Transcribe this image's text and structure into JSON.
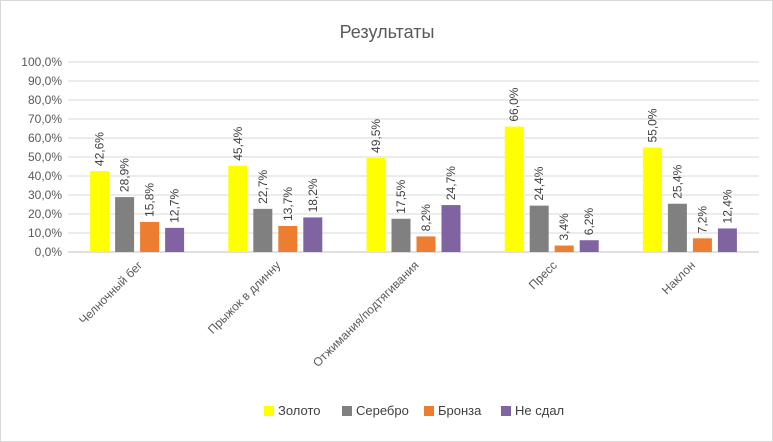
{
  "chart_data": {
    "type": "bar",
    "title": "Результаты",
    "categories": [
      "Челночный бег",
      "Прыжок в длинну",
      "Отжимания/подтягивания",
      "Пресс",
      "Наклон"
    ],
    "y_tick_labels": [
      "0,0%",
      "10,0%",
      "20,0%",
      "30,0%",
      "40,0%",
      "50,0%",
      "60,0%",
      "70,0%",
      "80,0%",
      "90,0%",
      "100,0%"
    ],
    "ylim": [
      0,
      100
    ],
    "grid": true,
    "legend_position": "bottom",
    "series": [
      {
        "name": "Золото",
        "color": "#ffff00",
        "values": [
          42.6,
          45.4,
          49.5,
          66.0,
          55.0
        ],
        "labels": [
          "42,6%",
          "45,4%",
          "49,5%",
          "66,0%",
          "55,0%"
        ]
      },
      {
        "name": "Серебро",
        "color": "#808080",
        "values": [
          28.9,
          22.7,
          17.5,
          24.4,
          25.4
        ],
        "labels": [
          "28,9%",
          "22,7%",
          "17,5%",
          "24,4%",
          "25,4%"
        ]
      },
      {
        "name": "Бронза",
        "color": "#ed7d31",
        "values": [
          15.8,
          13.7,
          8.2,
          3.4,
          7.2
        ],
        "labels": [
          "15,8%",
          "13,7%",
          "8,2%",
          "3,4%",
          "7,2%"
        ]
      },
      {
        "name": "Не сдал",
        "color": "#8064a2",
        "values": [
          12.7,
          18.2,
          24.7,
          6.2,
          12.4
        ],
        "labels": [
          "12,7%",
          "18,2%",
          "24,7%",
          "6,2%",
          "12,4%"
        ]
      }
    ]
  }
}
